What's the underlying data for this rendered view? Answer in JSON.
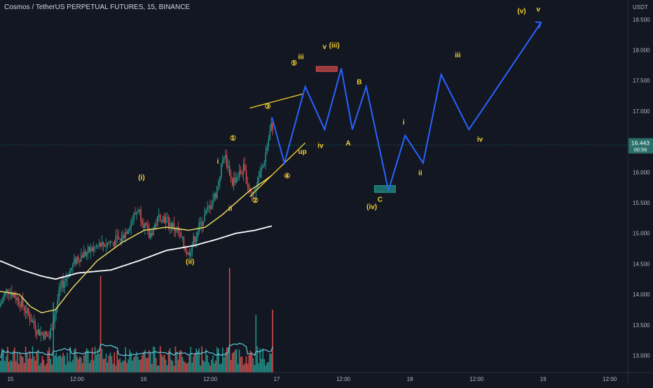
{
  "header": {
    "symbol": "Cosmos / TetherUS PERPETUAL FUTURES",
    "interval": "15",
    "exchange": "BINANCE"
  },
  "chart_data": {
    "type": "candlestick",
    "currency": "USDT",
    "ylim": [
      12.72,
      18.75
    ],
    "y_ticks": [
      13.0,
      13.5,
      14.0,
      14.5,
      15.0,
      15.5,
      16.0,
      16.5,
      17.0,
      17.5,
      18.0,
      18.5
    ],
    "y_tick_labels": [
      "13.000",
      "13.500",
      "14.000",
      "14.500",
      "15.000",
      "15.500",
      "16.000",
      "16.500",
      "17.000",
      "17.500",
      "18.000",
      "18.500"
    ],
    "x_ticks": [
      "15",
      "12:00",
      "16",
      "12:00",
      "17",
      "12:00",
      "18",
      "12:00",
      "19",
      "12:00"
    ],
    "last_price": "16.443",
    "countdown": "00:56",
    "colors": {
      "background": "#131722",
      "up": "#26a69a",
      "down": "#ef5350",
      "ma_fast": "#f0e167",
      "ma_slow": "#ffffff",
      "projection": "#2962ff",
      "labels": "#f5d033",
      "price_tag": "#2a6f6a",
      "volume_ma": "#5ec8d8"
    },
    "price_path_anchors": [
      [
        0,
        13.8
      ],
      [
        6,
        14.1
      ],
      [
        16,
        13.85
      ],
      [
        28,
        13.4
      ],
      [
        36,
        13.3
      ],
      [
        44,
        14.1
      ],
      [
        56,
        14.6
      ],
      [
        72,
        14.8
      ],
      [
        88,
        14.9
      ],
      [
        100,
        15.4
      ],
      [
        108,
        14.95
      ],
      [
        116,
        15.3
      ],
      [
        128,
        15.05
      ],
      [
        136,
        14.65
      ],
      [
        144,
        15.1
      ],
      [
        156,
        15.65
      ],
      [
        162,
        16.3
      ],
      [
        168,
        15.85
      ],
      [
        176,
        16.05
      ],
      [
        182,
        15.6
      ],
      [
        190,
        16.1
      ],
      [
        196,
        16.75
      ]
    ],
    "ma_fast": [
      [
        0,
        14.05
      ],
      [
        14,
        14.0
      ],
      [
        22,
        13.8
      ],
      [
        30,
        13.7
      ],
      [
        40,
        13.75
      ],
      [
        52,
        14.1
      ],
      [
        70,
        14.55
      ],
      [
        88,
        14.85
      ],
      [
        104,
        15.05
      ],
      [
        120,
        15.1
      ],
      [
        136,
        15.05
      ],
      [
        148,
        15.1
      ],
      [
        160,
        15.3
      ],
      [
        170,
        15.5
      ],
      [
        180,
        15.7
      ],
      [
        190,
        15.85
      ],
      [
        196,
        15.95
      ]
    ],
    "ma_slow": [
      [
        0,
        14.55
      ],
      [
        16,
        14.4
      ],
      [
        30,
        14.3
      ],
      [
        40,
        14.25
      ],
      [
        56,
        14.35
      ],
      [
        80,
        14.4
      ],
      [
        100,
        14.55
      ],
      [
        120,
        14.72
      ],
      [
        140,
        14.8
      ],
      [
        156,
        14.9
      ],
      [
        170,
        15.0
      ],
      [
        184,
        15.05
      ],
      [
        196,
        15.12
      ]
    ],
    "wave_lines": [
      {
        "x": [
          180,
          218
        ],
        "y": [
          17.05,
          17.28
        ]
      },
      {
        "x": [
          180,
          220
        ],
        "y": [
          15.6,
          16.48
        ]
      }
    ],
    "projection_path": {
      "x": [
        196,
        205,
        220,
        234,
        246,
        254,
        264,
        280,
        292,
        305,
        318,
        338,
        350,
        390
      ],
      "y": [
        16.9,
        16.15,
        17.4,
        16.7,
        17.7,
        16.7,
        17.4,
        15.7,
        16.6,
        16.15,
        17.6,
        16.7,
        17.1,
        18.45
      ]
    },
    "boxes": [
      {
        "x": [
          228,
          243
        ],
        "y": [
          17.65,
          17.73
        ],
        "color": "#ef5350"
      },
      {
        "x": [
          270,
          285
        ],
        "y": [
          15.67,
          15.78
        ],
        "color": "#26a69a"
      }
    ],
    "wave_labels": [
      {
        "text": "(i)",
        "x": 102,
        "y": 15.88
      },
      {
        "text": "(ii)",
        "x": 137,
        "y": 14.5
      },
      {
        "text": "i",
        "x": 157,
        "y": 16.14
      },
      {
        "text": "ii",
        "x": 166,
        "y": 15.37
      },
      {
        "text": "①",
        "x": 168,
        "y": 16.52
      },
      {
        "text": "②",
        "x": 184,
        "y": 15.5
      },
      {
        "text": "③",
        "x": 193,
        "y": 17.04
      },
      {
        "text": "④",
        "x": 207,
        "y": 15.9
      },
      {
        "text": "⑤",
        "x": 212,
        "y": 17.75
      },
      {
        "text": "iii",
        "x": 217,
        "y": 17.85
      },
      {
        "text": "up",
        "x": 218,
        "y": 16.3
      },
      {
        "text": "iv",
        "x": 231,
        "y": 16.4
      },
      {
        "text": "v",
        "x": 234,
        "y": 18.02
      },
      {
        "text": "(iii)",
        "x": 241,
        "y": 18.04
      },
      {
        "text": "B",
        "x": 259,
        "y": 17.44
      },
      {
        "text": "A",
        "x": 251,
        "y": 16.44
      },
      {
        "text": "C",
        "x": 274,
        "y": 15.52
      },
      {
        "text": "(iv)",
        "x": 268,
        "y": 15.4
      },
      {
        "text": "i",
        "x": 291,
        "y": 16.78
      },
      {
        "text": "ii",
        "x": 303,
        "y": 15.95
      },
      {
        "text": "iii",
        "x": 330,
        "y": 17.88
      },
      {
        "text": "iv",
        "x": 346,
        "y": 16.5
      },
      {
        "text": "(v)",
        "x": 376,
        "y": 18.6
      },
      {
        "text": "v",
        "x": 388,
        "y": 18.63
      }
    ]
  }
}
